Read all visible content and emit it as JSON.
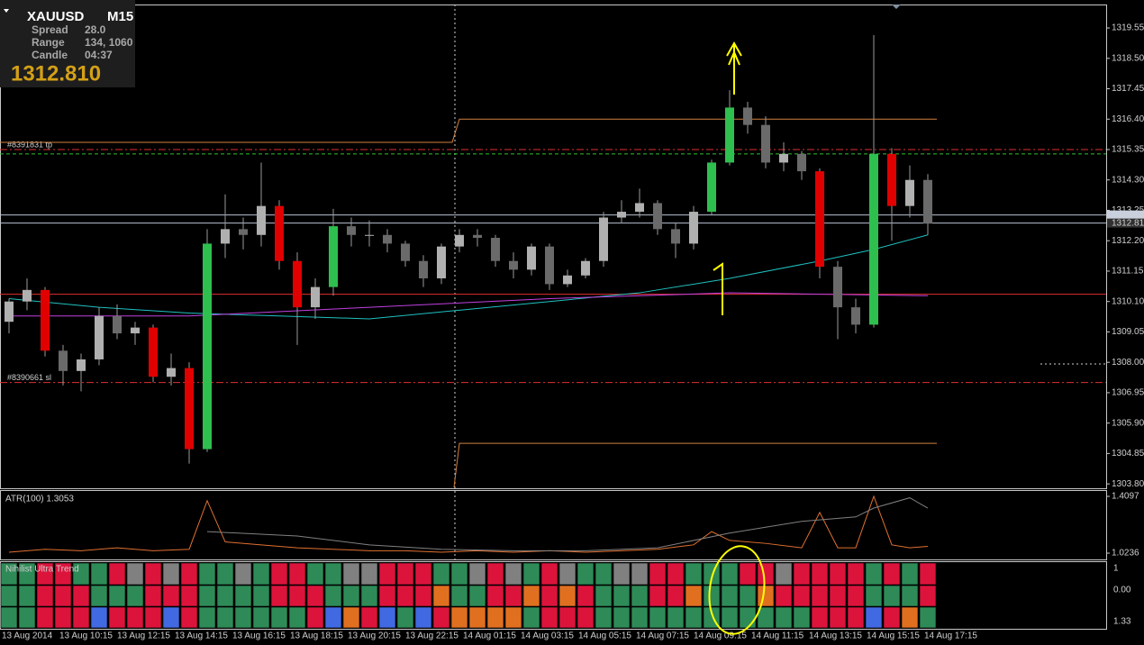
{
  "info": {
    "symbol": "XAUUSD",
    "timeframe": "M15",
    "rows": [
      [
        "Spread",
        "28.0"
      ],
      [
        "Range",
        "134, 1060"
      ],
      [
        "Candle",
        "04:37"
      ]
    ],
    "price": "1312.810"
  },
  "chart_data": [
    {
      "type": "candlestick",
      "ylim": [
        1303.68,
        1320.36
      ],
      "yticks": [
        1319.55,
        {
          "value": 1318.5,
          "label": "1318.50"
        },
        1317.45,
        {
          "value": 1316.4,
          "label": "1316.40"
        },
        1315.35,
        {
          "value": 1314.3,
          "label": "1314.30"
        },
        1313.25,
        {
          "value": 1312.2,
          "label": "1312.20"
        },
        1311.15,
        {
          "value": 1310.1,
          "label": "1310.10"
        },
        1309.05,
        {
          "value": 1308,
          "label": "1308.00"
        },
        1306.95,
        {
          "value": 1305.9,
          "label": "1305.90"
        },
        1304.85,
        {
          "value": 1303.8,
          "label": "1303.80"
        }
      ],
      "candles": [
        [
          1309.4,
          1310.2,
          1309.0,
          1310.1
        ],
        [
          1310.1,
          1310.9,
          1309.8,
          1310.5
        ],
        [
          1310.5,
          1310.6,
          1308.2,
          1308.4
        ],
        [
          1308.4,
          1308.6,
          1307.2,
          1307.7
        ],
        [
          1307.7,
          1308.3,
          1307.0,
          1308.1
        ],
        [
          1308.1,
          1309.9,
          1307.9,
          1309.6
        ],
        [
          1309.6,
          1310.0,
          1308.8,
          1309.0
        ],
        [
          1309.0,
          1309.4,
          1308.6,
          1309.2
        ],
        [
          1309.2,
          1309.3,
          1307.3,
          1307.5
        ],
        [
          1307.5,
          1308.3,
          1307.2,
          1307.8
        ],
        [
          1307.8,
          1308.0,
          1304.5,
          1305.0
        ],
        [
          1305.0,
          1312.6,
          1304.9,
          1312.1
        ],
        [
          1312.1,
          1313.8,
          1311.6,
          1312.6
        ],
        [
          1312.6,
          1313.0,
          1311.9,
          1312.4
        ],
        [
          1312.4,
          1314.9,
          1312.0,
          1313.4
        ],
        [
          1313.4,
          1313.6,
          1311.2,
          1311.5
        ],
        [
          1311.5,
          1311.8,
          1308.6,
          1309.9
        ],
        [
          1309.9,
          1310.9,
          1309.5,
          1310.6
        ],
        [
          1310.6,
          1313.3,
          1310.3,
          1312.7
        ],
        [
          1312.7,
          1313.0,
          1312.0,
          1312.4
        ],
        [
          1312.4,
          1312.9,
          1312.0,
          1312.4
        ],
        [
          1312.4,
          1312.6,
          1311.8,
          1312.1
        ],
        [
          1312.1,
          1312.2,
          1311.3,
          1311.5
        ],
        [
          1311.5,
          1311.7,
          1310.6,
          1310.9
        ],
        [
          1310.9,
          1312.1,
          1310.7,
          1312.0
        ],
        [
          1312.0,
          1312.6,
          1311.8,
          1312.4
        ],
        [
          1312.4,
          1312.6,
          1312.0,
          1312.3
        ],
        [
          1312.3,
          1312.4,
          1311.3,
          1311.5
        ],
        [
          1311.5,
          1311.8,
          1310.9,
          1311.2
        ],
        [
          1311.2,
          1312.1,
          1311.0,
          1312.0
        ],
        [
          1312.0,
          1312.1,
          1310.5,
          1310.7
        ],
        [
          1310.7,
          1311.2,
          1310.6,
          1311.0
        ],
        [
          1311.0,
          1311.6,
          1310.9,
          1311.5
        ],
        [
          1311.5,
          1313.2,
          1311.3,
          1313.0
        ],
        [
          1313.0,
          1313.6,
          1312.8,
          1313.2
        ],
        [
          1313.2,
          1314.0,
          1313.0,
          1313.5
        ],
        [
          1313.5,
          1313.6,
          1312.4,
          1312.6
        ],
        [
          1312.6,
          1312.8,
          1311.6,
          1312.1
        ],
        [
          1312.1,
          1313.4,
          1311.9,
          1313.2
        ],
        [
          1313.2,
          1315.0,
          1313.1,
          1314.9
        ],
        [
          1314.9,
          1317.4,
          1314.8,
          1316.8
        ],
        [
          1316.8,
          1317.0,
          1315.9,
          1316.2
        ],
        [
          1316.2,
          1316.5,
          1314.7,
          1314.9
        ],
        [
          1314.9,
          1315.6,
          1314.6,
          1315.2
        ],
        [
          1315.2,
          1315.3,
          1314.3,
          1314.6
        ],
        [
          1314.6,
          1314.7,
          1310.9,
          1311.3
        ],
        [
          1311.3,
          1311.5,
          1308.8,
          1309.9
        ],
        [
          1309.9,
          1310.2,
          1309.0,
          1309.3
        ],
        [
          1309.3,
          1319.3,
          1309.2,
          1315.2
        ],
        [
          1315.2,
          1315.4,
          1312.2,
          1313.4
        ],
        [
          1313.4,
          1314.8,
          1313.0,
          1314.3
        ],
        [
          1314.3,
          1314.5,
          1312.4,
          1312.8
        ]
      ],
      "lines": [
        {
          "color": "#20c0c0",
          "x": [
            0,
            5,
            10,
            15,
            20,
            25,
            30,
            35,
            40,
            45,
            48,
            51
          ],
          "values": [
            1310.2,
            1309.9,
            1309.7,
            1309.6,
            1309.5,
            1309.8,
            1310.1,
            1310.4,
            1310.9,
            1311.5,
            1311.9,
            1312.4
          ]
        },
        {
          "color": "#c040e0",
          "x": [
            0,
            10,
            20,
            30,
            40,
            51
          ],
          "values": [
            1309.6,
            1309.6,
            1309.9,
            1310.2,
            1310.4,
            1310.3
          ]
        },
        {
          "color": "#d08040",
          "x": [
            -0.5,
            24.6,
            25,
            51.5
          ],
          "values": [
            1315.6,
            1315.6,
            1316.4,
            1316.4
          ]
        },
        {
          "color": "#d08040",
          "x": [
            24.7,
            25,
            51.5
          ],
          "values": [
            1303.68,
            1305.2,
            1305.2
          ]
        }
      ],
      "levels": [
        {
          "value": 1315.35,
          "color": "#e03030",
          "label": "#8391831 tp"
        },
        {
          "value": 1315.2,
          "color": "#30c030"
        },
        {
          "value": 1310.35,
          "color": "#e03030"
        },
        {
          "value": 1307.3,
          "color": "#e03030",
          "label": "#8390661 sl"
        }
      ],
      "price_lines": [
        1313.09,
        1312.81
      ]
    },
    {
      "type": "line",
      "title": "ATR(100) 1.3053",
      "ylim": [
        0.987,
        1.4465
      ],
      "yticks": [
        1.4097,
        1.0236
      ],
      "series": [
        {
          "color": "#e07030",
          "x": [
            0,
            2,
            4,
            6,
            8,
            10,
            11,
            12,
            14,
            16,
            18,
            20,
            22,
            24,
            26,
            28,
            30,
            32,
            34,
            36,
            38,
            39,
            40,
            42,
            44,
            45,
            46,
            47,
            48,
            49,
            50,
            51
          ],
          "values": [
            1.03,
            1.05,
            1.04,
            1.06,
            1.04,
            1.05,
            1.38,
            1.1,
            1.08,
            1.06,
            1.05,
            1.04,
            1.04,
            1.03,
            1.04,
            1.03,
            1.04,
            1.03,
            1.04,
            1.05,
            1.08,
            1.17,
            1.11,
            1.09,
            1.06,
            1.3,
            1.06,
            1.06,
            1.41,
            1.08,
            1.06,
            1.07
          ]
        },
        {
          "color": "#808080",
          "x": [
            11,
            16,
            20,
            24,
            28,
            32,
            36,
            40,
            44,
            47,
            48,
            50,
            51
          ],
          "values": [
            1.17,
            1.14,
            1.08,
            1.05,
            1.04,
            1.04,
            1.06,
            1.16,
            1.24,
            1.27,
            1.33,
            1.4,
            1.33
          ]
        }
      ]
    }
  ],
  "trend_panel": {
    "title": "Nihilist Ultra Trend",
    "scale_labels": [
      "1",
      "0.00",
      "1.33"
    ]
  },
  "time_axis": {
    "labels": [
      "13 Aug 2014",
      "13 Aug 10:15",
      "13 Aug 12:15",
      "13 Aug 14:15",
      "13 Aug 16:15",
      "13 Aug 18:15",
      "13 Aug 20:15",
      "13 Aug 22:15",
      "14 Aug 01:15",
      "14 Aug 03:15",
      "14 Aug 05:15",
      "14 Aug 07:15",
      "14 Aug 09:15",
      "14 Aug 11:15",
      "14 Aug 13:15",
      "14 Aug 15:15",
      "14 Aug 17:15"
    ]
  }
}
